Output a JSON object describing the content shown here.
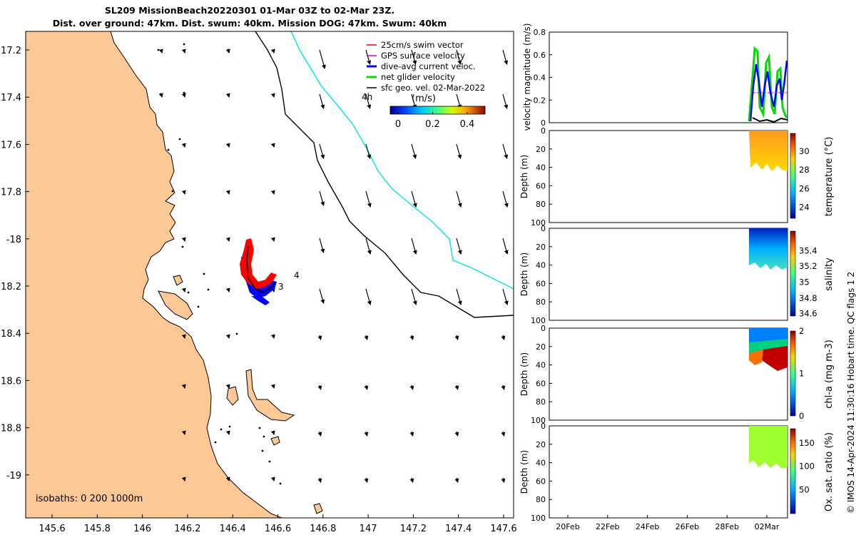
{
  "header": {
    "line1": "SL209 MissionBeach20220301 01-Mar 03Z to 02-Mar 23Z.",
    "line2": "Dist. over ground: 47km. Dist. swum: 40km. Mission DOG: 47km. Swum: 40km"
  },
  "map": {
    "lon_ticks": [
      "145.6",
      "145.8",
      "146",
      "146.2",
      "146.4",
      "146.6",
      "146.8",
      "147",
      "147.2",
      "147.4",
      "147.6"
    ],
    "lat_ticks": [
      "17.2",
      "17.4",
      "17.6",
      "17.8",
      "-18",
      "18.2",
      "18.4",
      "18.6",
      "18.8",
      "-19"
    ],
    "isobath_text": "isobaths: 0   200  1000m",
    "day_labels": [
      "4h",
      "4",
      "3"
    ],
    "legend": {
      "items": [
        {
          "label": "25cm/s swim vector",
          "color": "#ff0000"
        },
        {
          "label": "GPS surface velocity",
          "color": "#cc00cc"
        },
        {
          "label": "dive-avg current veloc.",
          "color": "#0000ff"
        },
        {
          "label": "net glider velocity",
          "color": "#00dd00"
        },
        {
          "label": "sfc geo. vel. 02-Mar-2022",
          "color": "#000000"
        }
      ],
      "colorbar_title": "(m/s)",
      "colorbar_ticks": [
        "0",
        "0.2",
        "0.4"
      ]
    },
    "colors": {
      "land": "#fcc896",
      "glider_red": "#ff0000",
      "glider_blue": "#0000ff",
      "contour_1000m": "#00e5e5"
    }
  },
  "panels": {
    "velocity": {
      "ylabel": "velocity magnitude (m/s)",
      "yticks": [
        "0",
        "0.2",
        "0.4",
        "0.6",
        "0.8"
      ]
    },
    "depth_ylabel": "Depth (m)",
    "depth_ticks": [
      "0",
      "20",
      "40",
      "60",
      "80",
      "100"
    ],
    "temperature": {
      "label": "temperature (°C)",
      "ticks": [
        "30",
        "28",
        "26",
        "24"
      ]
    },
    "salinity": {
      "label": "salinity",
      "ticks": [
        "35.4",
        "35.2",
        "35",
        "34.8",
        "34.6"
      ]
    },
    "chla": {
      "label": "chl-a (mg m-3)",
      "ticks": [
        "2",
        "1",
        "0"
      ]
    },
    "oxygen": {
      "label": "Ox. sat. ratio (%)",
      "ticks": [
        "150",
        "100",
        "50"
      ]
    },
    "time_ticks": [
      "20Feb",
      "22Feb",
      "24Feb",
      "26Feb",
      "28Feb",
      "02Mar"
    ]
  },
  "footer": {
    "credit": "© IMOS 14-Apr-2024 11:30:16 Hobart time. QC flags 1  2"
  }
}
